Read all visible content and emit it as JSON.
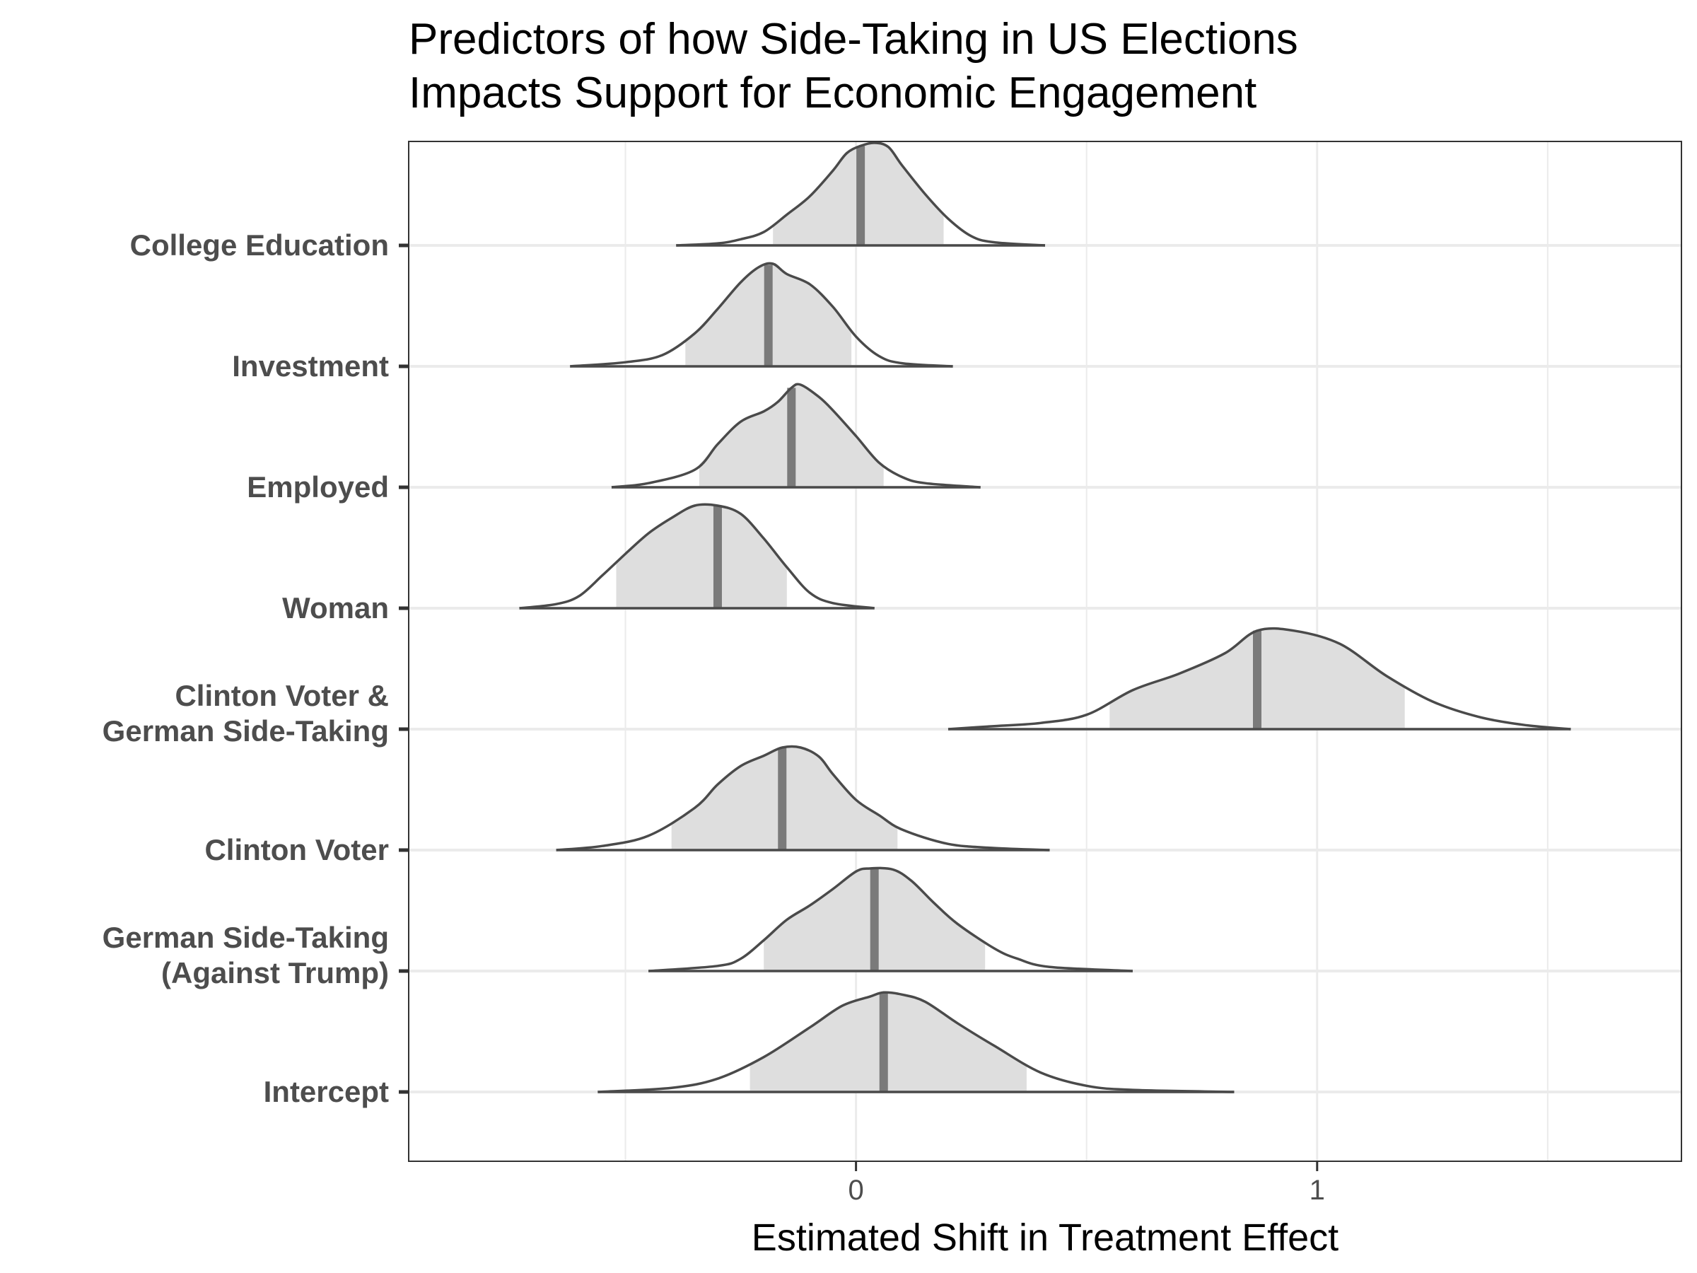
{
  "chart_data": {
    "type": "ridgeline",
    "title_lines": [
      "Predictors of how Side-Taking in US Elections",
      "Impacts Support for Economic Engagement"
    ],
    "xlabel": "Estimated Shift in Treatment Effect",
    "ylabel": "",
    "xlim": [
      -0.97,
      1.79
    ],
    "x_ticks": [
      {
        "value": 0,
        "label": "0"
      },
      {
        "value": 1,
        "label": "1"
      }
    ],
    "x_minor_gridlines": [
      -0.5,
      0.5,
      1.5
    ],
    "grid": true,
    "legend": "none",
    "colors": {
      "fill": "#dedede",
      "outline": "#4a4a4a",
      "median": "#7a7a7a",
      "grid": "#ebebeb",
      "panel_border": "#333333"
    },
    "categories": [
      {
        "label_lines": [
          "College Education"
        ],
        "median": 0.01,
        "interval": [
          -0.18,
          0.19
        ],
        "density": [
          [
            -0.39,
            0
          ],
          [
            -0.3,
            0.02
          ],
          [
            -0.25,
            0.06
          ],
          [
            -0.2,
            0.13
          ],
          [
            -0.15,
            0.3
          ],
          [
            -0.1,
            0.48
          ],
          [
            -0.05,
            0.73
          ],
          [
            -0.02,
            0.9
          ],
          [
            0.01,
            0.97
          ],
          [
            0.04,
            1
          ],
          [
            0.07,
            0.96
          ],
          [
            0.1,
            0.78
          ],
          [
            0.15,
            0.5
          ],
          [
            0.2,
            0.26
          ],
          [
            0.25,
            0.09
          ],
          [
            0.3,
            0.03
          ],
          [
            0.41,
            0
          ]
        ]
      },
      {
        "label_lines": [
          "Investment"
        ],
        "median": -0.19,
        "interval": [
          -0.37,
          -0.01
        ],
        "density": [
          [
            -0.62,
            0
          ],
          [
            -0.5,
            0.04
          ],
          [
            -0.42,
            0.11
          ],
          [
            -0.35,
            0.32
          ],
          [
            -0.3,
            0.56
          ],
          [
            -0.25,
            0.82
          ],
          [
            -0.21,
            0.97
          ],
          [
            -0.18,
            1
          ],
          [
            -0.15,
            0.9
          ],
          [
            -0.1,
            0.8
          ],
          [
            -0.05,
            0.58
          ],
          [
            0,
            0.29
          ],
          [
            0.05,
            0.1
          ],
          [
            0.1,
            0.03
          ],
          [
            0.21,
            0
          ]
        ]
      },
      {
        "label_lines": [
          "Employed"
        ],
        "median": -0.14,
        "interval": [
          -0.34,
          0.06
        ],
        "density": [
          [
            -0.53,
            0
          ],
          [
            -0.45,
            0.04
          ],
          [
            -0.35,
            0.17
          ],
          [
            -0.3,
            0.42
          ],
          [
            -0.25,
            0.64
          ],
          [
            -0.2,
            0.74
          ],
          [
            -0.17,
            0.83
          ],
          [
            -0.14,
            0.97
          ],
          [
            -0.12,
            1
          ],
          [
            -0.08,
            0.88
          ],
          [
            -0.05,
            0.75
          ],
          [
            0,
            0.5
          ],
          [
            0.05,
            0.24
          ],
          [
            0.1,
            0.1
          ],
          [
            0.15,
            0.04
          ],
          [
            0.27,
            0
          ]
        ]
      },
      {
        "label_lines": [
          "Woman"
        ],
        "median": -0.3,
        "interval": [
          -0.52,
          -0.15
        ],
        "density": [
          [
            -0.73,
            0
          ],
          [
            -0.65,
            0.04
          ],
          [
            -0.6,
            0.12
          ],
          [
            -0.55,
            0.32
          ],
          [
            -0.5,
            0.53
          ],
          [
            -0.45,
            0.73
          ],
          [
            -0.4,
            0.88
          ],
          [
            -0.35,
            1
          ],
          [
            -0.3,
            1
          ],
          [
            -0.25,
            0.92
          ],
          [
            -0.2,
            0.68
          ],
          [
            -0.15,
            0.4
          ],
          [
            -0.1,
            0.15
          ],
          [
            -0.05,
            0.05
          ],
          [
            0.04,
            0
          ]
        ]
      },
      {
        "label_lines": [
          "Clinton Voter &",
          "German Side-Taking"
        ],
        "median": 0.87,
        "interval": [
          0.55,
          1.19
        ],
        "density": [
          [
            0.2,
            0
          ],
          [
            0.3,
            0.03
          ],
          [
            0.4,
            0.06
          ],
          [
            0.5,
            0.14
          ],
          [
            0.6,
            0.38
          ],
          [
            0.7,
            0.54
          ],
          [
            0.8,
            0.74
          ],
          [
            0.87,
            0.96
          ],
          [
            0.95,
            0.96
          ],
          [
            1.05,
            0.83
          ],
          [
            1.15,
            0.52
          ],
          [
            1.25,
            0.27
          ],
          [
            1.35,
            0.12
          ],
          [
            1.45,
            0.04
          ],
          [
            1.55,
            0
          ]
        ]
      },
      {
        "label_lines": [
          "Clinton Voter"
        ],
        "median": -0.16,
        "interval": [
          -0.4,
          0.09
        ],
        "density": [
          [
            -0.65,
            0
          ],
          [
            -0.55,
            0.04
          ],
          [
            -0.45,
            0.14
          ],
          [
            -0.35,
            0.41
          ],
          [
            -0.3,
            0.64
          ],
          [
            -0.25,
            0.82
          ],
          [
            -0.2,
            0.92
          ],
          [
            -0.16,
            1
          ],
          [
            -0.12,
            1
          ],
          [
            -0.08,
            0.91
          ],
          [
            -0.05,
            0.74
          ],
          [
            0,
            0.49
          ],
          [
            0.05,
            0.34
          ],
          [
            0.1,
            0.2
          ],
          [
            0.2,
            0.06
          ],
          [
            0.3,
            0.02
          ],
          [
            0.42,
            0
          ]
        ]
      },
      {
        "label_lines": [
          "German Side-Taking",
          "(Against Trump)"
        ],
        "median": 0.04,
        "interval": [
          -0.2,
          0.28
        ],
        "density": [
          [
            -0.45,
            0
          ],
          [
            -0.3,
            0.05
          ],
          [
            -0.25,
            0.12
          ],
          [
            -0.2,
            0.3
          ],
          [
            -0.15,
            0.5
          ],
          [
            -0.1,
            0.64
          ],
          [
            -0.05,
            0.8
          ],
          [
            0,
            0.97
          ],
          [
            0.03,
            1
          ],
          [
            0.08,
            0.99
          ],
          [
            0.12,
            0.88
          ],
          [
            0.17,
            0.66
          ],
          [
            0.22,
            0.46
          ],
          [
            0.3,
            0.22
          ],
          [
            0.35,
            0.12
          ],
          [
            0.42,
            0.04
          ],
          [
            0.6,
            0
          ]
        ]
      },
      {
        "label_lines": [
          "Intercept"
        ],
        "median": 0.06,
        "interval": [
          -0.23,
          0.37
        ],
        "density": [
          [
            -0.56,
            0
          ],
          [
            -0.4,
            0.04
          ],
          [
            -0.3,
            0.13
          ],
          [
            -0.2,
            0.34
          ],
          [
            -0.1,
            0.63
          ],
          [
            -0.03,
            0.84
          ],
          [
            0.03,
            0.93
          ],
          [
            0.06,
            0.97
          ],
          [
            0.1,
            0.95
          ],
          [
            0.15,
            0.88
          ],
          [
            0.22,
            0.67
          ],
          [
            0.3,
            0.45
          ],
          [
            0.4,
            0.19
          ],
          [
            0.5,
            0.06
          ],
          [
            0.6,
            0.02
          ],
          [
            0.82,
            0
          ]
        ]
      }
    ]
  }
}
